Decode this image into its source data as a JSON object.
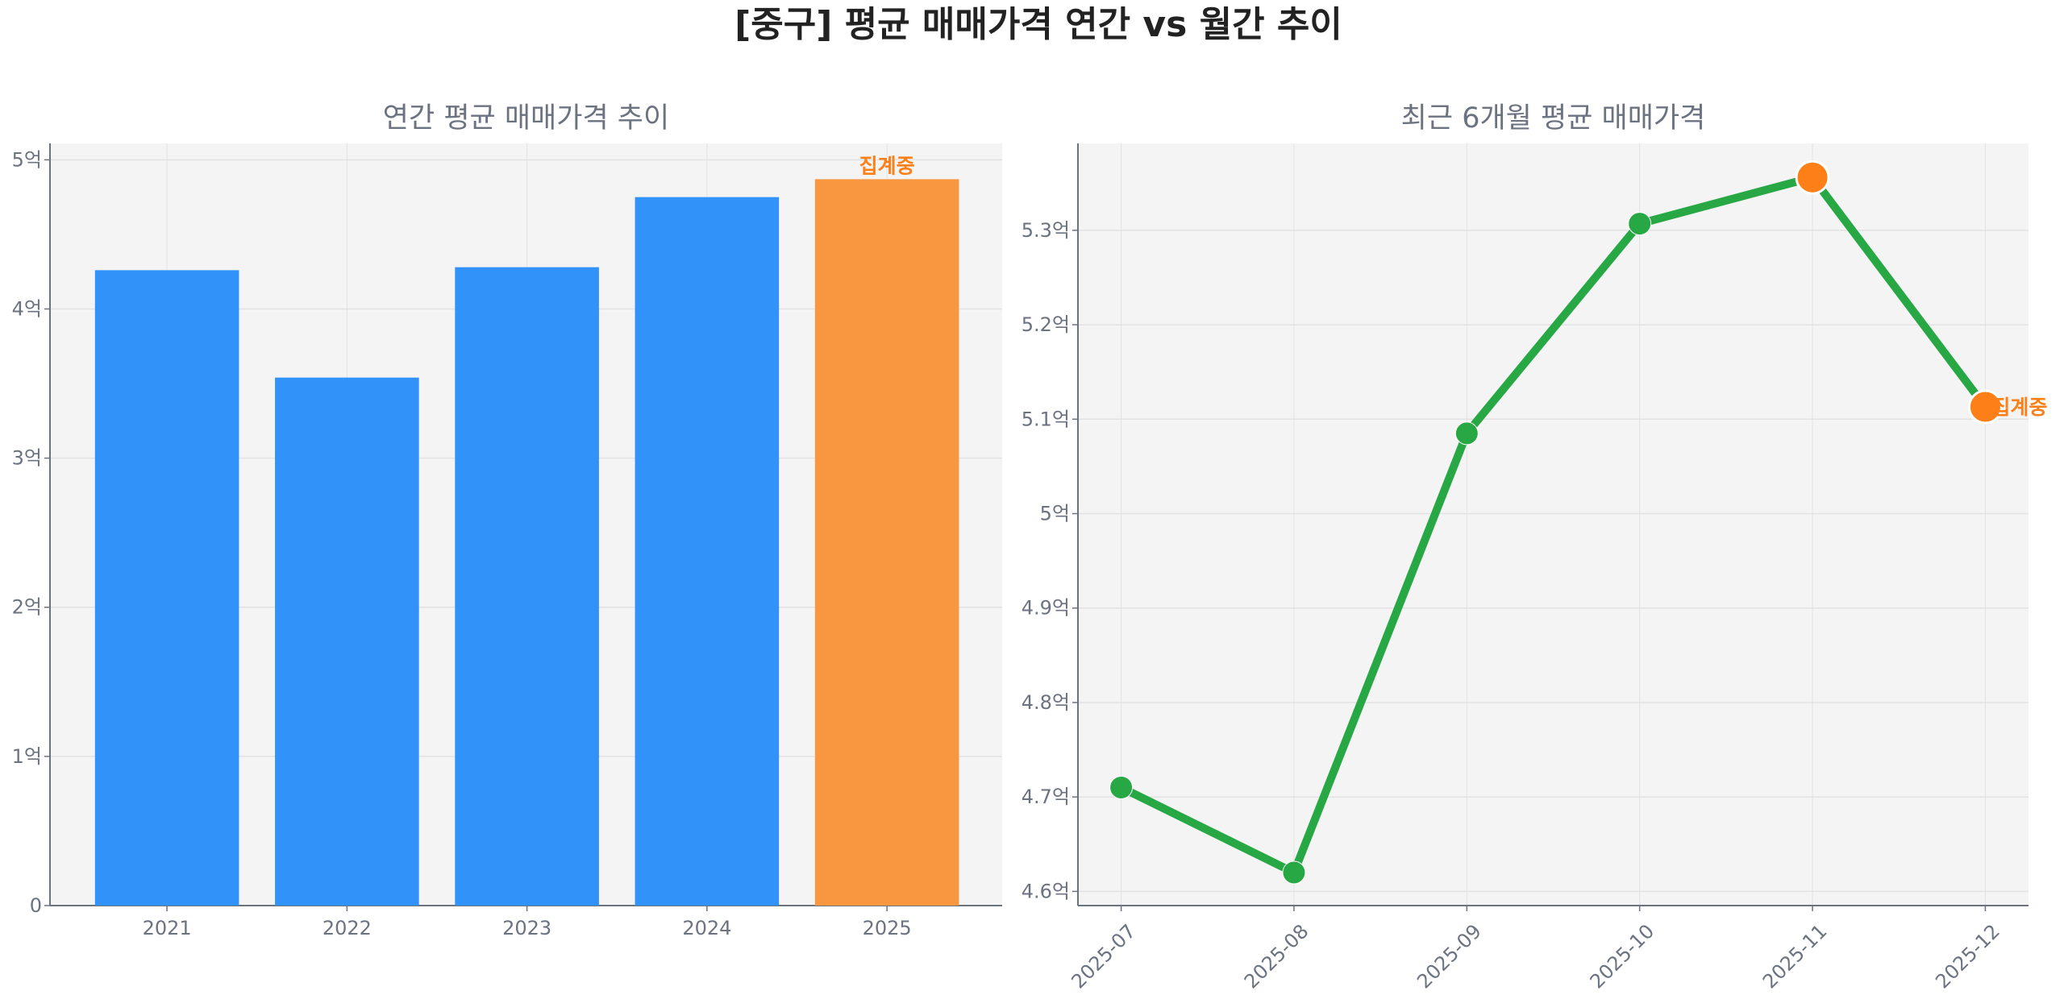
{
  "title": "[중구] 평균 매매가격 연간 vs 월간 추이",
  "colors": {
    "bar": "#3193fa",
    "highlight": "#f99640",
    "line": "#28a745",
    "marker_highlight": "#fd7f17",
    "label": "#fd7f17",
    "plot_bg": "#f4f4f4"
  },
  "chart_data": [
    {
      "type": "bar",
      "title": "연간 평균 매매가격 추이",
      "categories": [
        "2021",
        "2022",
        "2023",
        "2024",
        "2025"
      ],
      "values": [
        4.26,
        3.54,
        4.28,
        4.75,
        4.87
      ],
      "unit": "억",
      "ylim": [
        0,
        5.11
      ],
      "yticks": [
        0,
        1,
        2,
        3,
        4,
        5
      ],
      "ytick_labels": [
        "0",
        "1억",
        "2억",
        "3억",
        "4억",
        "5억"
      ],
      "highlight_index": 4,
      "annotation": {
        "index": 4,
        "text": "집계중"
      },
      "grid": true
    },
    {
      "type": "line",
      "title": "최근 6개월 평균 매매가격",
      "categories": [
        "2025-07",
        "2025-08",
        "2025-09",
        "2025-10",
        "2025-11",
        "2025-12"
      ],
      "values": [
        4.71,
        4.62,
        5.085,
        5.307,
        5.356,
        5.113
      ],
      "unit": "억",
      "ylim": [
        4.585,
        5.392
      ],
      "yticks": [
        4.6,
        4.7,
        4.8,
        4.9,
        5.0,
        5.1,
        5.2,
        5.3
      ],
      "ytick_labels": [
        "4.6억",
        "4.7억",
        "4.8억",
        "4.9억",
        "5억",
        "5.1억",
        "5.2억",
        "5.3억"
      ],
      "highlight_indices": [
        4,
        5
      ],
      "annotation": {
        "index": 5,
        "text": "집계중"
      },
      "grid": true
    }
  ]
}
